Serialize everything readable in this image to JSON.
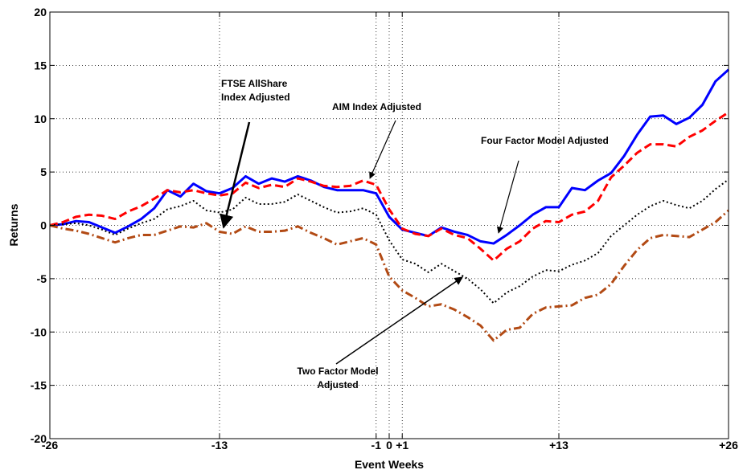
{
  "chart_data": {
    "type": "line",
    "x_label": "Event Weeks",
    "y_label": "Returns",
    "x": [
      -26,
      -25,
      -24,
      -23,
      -22,
      -21,
      -20,
      -19,
      -18,
      -17,
      -16,
      -15,
      -14,
      -13,
      -12,
      -11,
      -10,
      -9,
      -8,
      -7,
      -6,
      -5,
      -4,
      -3,
      -2,
      -1,
      0,
      1,
      2,
      3,
      4,
      5,
      6,
      7,
      8,
      9,
      10,
      11,
      12,
      13,
      14,
      15,
      16,
      17,
      18,
      19,
      20,
      21,
      22,
      23,
      24,
      25,
      26
    ],
    "xlim": [
      -26,
      26
    ],
    "xticks": [
      -26,
      -13,
      -1,
      0,
      {
        "value": 1,
        "label": "+1"
      },
      {
        "value": 13,
        "label": "+13"
      },
      {
        "value": 26,
        "label": "+26"
      }
    ],
    "ylim": [
      -20,
      20
    ],
    "yticks": [
      -20,
      -15,
      -10,
      -5,
      0,
      5,
      10,
      15,
      20
    ],
    "grid": true,
    "series": [
      {
        "name": "Four Factor Model Adjusted",
        "color": "#0000ff",
        "style": "solid",
        "values": [
          0,
          0.1,
          0.4,
          0.3,
          -0.2,
          -0.7,
          -0.1,
          0.6,
          1.6,
          3.3,
          2.7,
          3.9,
          3.2,
          3.0,
          3.5,
          4.6,
          3.9,
          4.4,
          4.1,
          4.6,
          4.2,
          3.6,
          3.3,
          3.3,
          3.3,
          3.0,
          0.8,
          -0.4,
          -0.7,
          -1.0,
          -0.2,
          -0.6,
          -0.9,
          -1.5,
          -1.7,
          -0.9,
          0,
          1.0,
          1.7,
          1.7,
          3.5,
          3.3,
          4.2,
          4.9,
          6.5,
          8.5,
          10.2,
          10.3,
          9.5,
          10.1,
          11.3,
          13.5,
          14.6
        ]
      },
      {
        "name": "AIM Index Adjusted",
        "color": "#ff0000",
        "style": "dashed",
        "values": [
          0,
          0.3,
          0.8,
          1.0,
          0.9,
          0.6,
          1.3,
          1.8,
          2.5,
          3.3,
          3.1,
          3.3,
          3.0,
          2.8,
          3.0,
          4.0,
          3.5,
          3.8,
          3.6,
          4.4,
          4.1,
          3.7,
          3.6,
          3.7,
          4.2,
          3.8,
          1.5,
          -0.3,
          -0.8,
          -1.0,
          -0.3,
          -0.9,
          -1.2,
          -2.2,
          -3.3,
          -2.2,
          -1.5,
          -0.3,
          0.4,
          0.3,
          1.0,
          1.3,
          2.3,
          4.5,
          5.6,
          6.8,
          7.6,
          7.6,
          7.4,
          8.3,
          8.9,
          9.8,
          10.6
        ]
      },
      {
        "name": "Two Factor Model Adjusted",
        "color": "#000000",
        "style": "dotted",
        "values": [
          0,
          0.1,
          0.2,
          0.0,
          -0.4,
          -0.9,
          -0.3,
          0.2,
          0.6,
          1.5,
          1.8,
          2.3,
          1.4,
          1.2,
          1.5,
          2.6,
          2.0,
          2.0,
          2.2,
          2.9,
          2.3,
          1.7,
          1.2,
          1.3,
          1.6,
          1.0,
          -1.4,
          -3.2,
          -3.6,
          -4.4,
          -3.6,
          -4.3,
          -5.0,
          -6.0,
          -7.3,
          -6.3,
          -5.7,
          -4.8,
          -4.2,
          -4.3,
          -3.7,
          -3.3,
          -2.6,
          -1.0,
          0.0,
          1.0,
          1.8,
          2.3,
          1.9,
          1.6,
          2.3,
          3.4,
          4.3
        ]
      },
      {
        "name": "FTSE AllShare Index Adjusted",
        "color": "#b24a14",
        "style": "dashdot",
        "values": [
          0,
          -0.3,
          -0.5,
          -0.8,
          -1.2,
          -1.6,
          -1.2,
          -0.9,
          -0.9,
          -0.5,
          -0.1,
          -0.2,
          0.2,
          -0.6,
          -0.8,
          -0.1,
          -0.6,
          -0.6,
          -0.5,
          -0.1,
          -0.7,
          -1.2,
          -1.8,
          -1.5,
          -1.2,
          -1.8,
          -4.8,
          -6.1,
          -6.8,
          -7.6,
          -7.4,
          -7.9,
          -8.6,
          -9.4,
          -10.8,
          -9.8,
          -9.6,
          -8.3,
          -7.7,
          -7.6,
          -7.5,
          -6.8,
          -6.5,
          -5.5,
          -3.8,
          -2.3,
          -1.2,
          -0.9,
          -1.0,
          -1.1,
          -0.4,
          0.3,
          1.4
        ]
      }
    ]
  }
}
